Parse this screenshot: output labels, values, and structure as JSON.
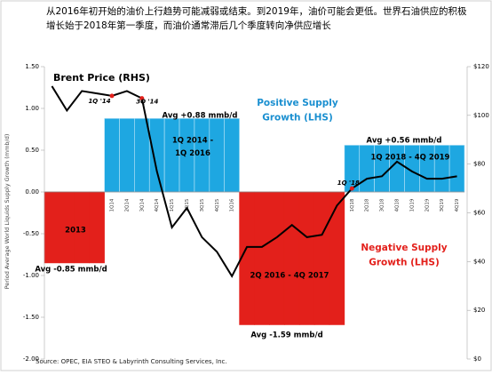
{
  "title_lines": [
    "从2016年初开始的油价上行趋势可能减弱或结束。到2019年，油价可能会更低。世界石油供应的积极",
    "增长始于2018年第一季度，而油价通常滞后几个季度转向净供应增长"
  ],
  "chart_data": {
    "type": "bar_line",
    "y_label": "Period Average World Liquids Supply Growth (mmb/d)",
    "categories": [
      null,
      null,
      null,
      null,
      "1Q14",
      "2Q14",
      "3Q14",
      "4Q14",
      "1Q15",
      "2Q15",
      "3Q15",
      "4Q15",
      "1Q16",
      null,
      null,
      null,
      null,
      null,
      null,
      null,
      "1Q18",
      "2Q18",
      "3Q18",
      "4Q18",
      "1Q19",
      "2Q19",
      "3Q19",
      "4Q19"
    ],
    "series": [
      {
        "type": "bar",
        "color": "#1ea7e1",
        "negative_color": "#e3201b",
        "values": [
          -0.85,
          -0.85,
          -0.85,
          -0.85,
          0.88,
          0.88,
          0.88,
          0.88,
          0.88,
          0.88,
          0.88,
          0.88,
          0.88,
          -1.59,
          -1.59,
          -1.59,
          -1.59,
          -1.59,
          -1.59,
          -1.59,
          0.56,
          0.56,
          0.56,
          0.56,
          0.56,
          0.56,
          0.56,
          0.56
        ]
      },
      {
        "type": "line",
        "axis": "y2",
        "color": "#000000",
        "values": [
          112,
          102,
          110,
          109,
          108,
          110,
          107,
          77,
          54,
          62,
          50,
          44,
          34,
          46,
          46,
          50,
          55,
          50,
          51,
          63,
          70,
          74,
          75,
          81,
          77,
          74,
          74,
          75
        ]
      }
    ],
    "highlights": [
      {
        "x": "1Q14",
        "label": "1Q '14"
      },
      {
        "x": "3Q14",
        "label": "3Q '14"
      },
      {
        "x": "1Q18",
        "label": "1Q '18"
      }
    ],
    "highlight_color": "#e3201b",
    "ylim": [
      -2,
      1.5
    ],
    "yticks": [
      {
        "value": 1.5,
        "label": "1.50"
      },
      {
        "value": 1,
        "label": "1.00"
      },
      {
        "value": 0.5,
        "label": "0.50"
      },
      {
        "value": 0,
        "label": "0.00"
      },
      {
        "value": -0.5,
        "label": "-0.50"
      },
      {
        "value": -1,
        "label": "-1.00"
      },
      {
        "value": -1.5,
        "label": "-1.50"
      },
      {
        "value": -2,
        "label": "-2.00"
      }
    ],
    "y2lim": [
      0,
      120
    ],
    "y2ticks": [
      {
        "value": 120,
        "label": "$120"
      },
      {
        "value": 100,
        "label": "$100"
      },
      {
        "value": 80,
        "label": "$80"
      },
      {
        "value": 60,
        "label": "$60"
      },
      {
        "value": 40,
        "label": "$40"
      },
      {
        "value": 20,
        "label": "$20"
      },
      {
        "value": 0,
        "label": "$0"
      }
    ],
    "annotations": [
      {
        "lines": [
          "Brent Price (RHS)"
        ],
        "color": "#000000"
      },
      {
        "lines": [
          "Positive Supply",
          "Growth (LHS)"
        ],
        "color": "#1a8fd0"
      },
      {
        "lines": [
          "Negative Supply",
          "Growth (LHS)"
        ],
        "color": "#e3201b"
      },
      {
        "lines": [
          "Avg +0.88 mmb/d"
        ],
        "color": "#000000"
      },
      {
        "lines": [
          "Avg -0.85 mmb/d"
        ],
        "color": "#000000"
      },
      {
        "lines": [
          "Avg -1.59 mmb/d"
        ],
        "color": "#000000"
      },
      {
        "lines": [
          "Avg +0.56 mmb/d"
        ],
        "color": "#000000"
      },
      {
        "lines": [
          "2013"
        ],
        "color": "#000000"
      },
      {
        "lines": [
          "1Q 2014 -",
          "1Q 2016"
        ],
        "color": "#000000"
      },
      {
        "lines": [
          "2Q 2016 - 4Q 2017"
        ],
        "color": "#000000"
      },
      {
        "lines": [
          "1Q 2018 - 4Q 2019"
        ],
        "color": "#000000"
      }
    ],
    "source": "Source:  OPEC, EIA STEO & Labyrinth Consulting Services, Inc."
  }
}
